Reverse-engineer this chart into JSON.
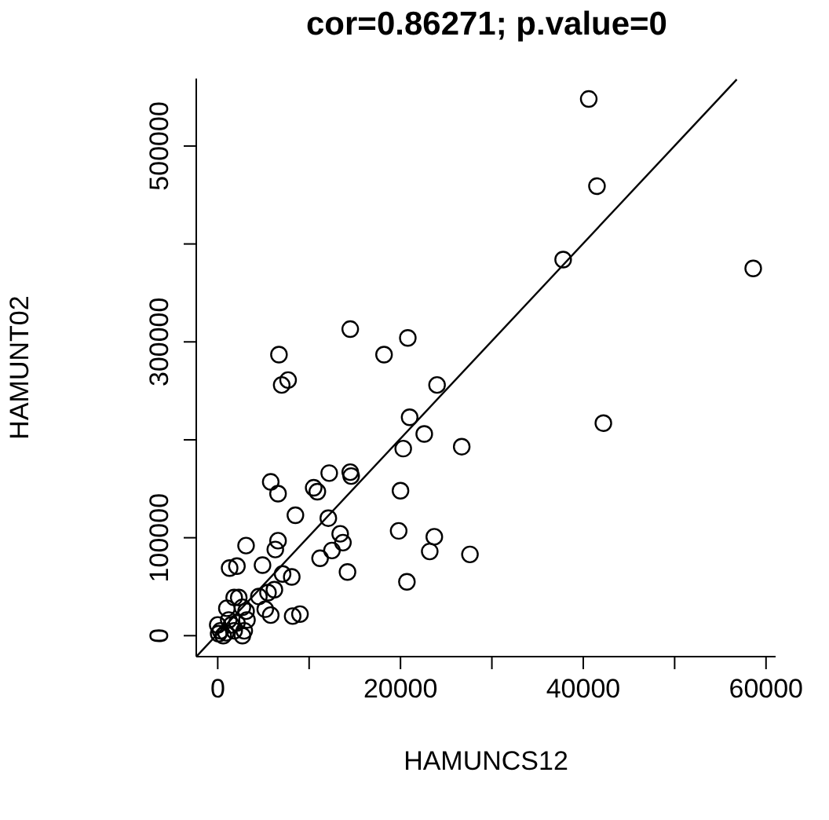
{
  "chart_data": {
    "type": "scatter",
    "title": "cor=0.86271;   p.value=0",
    "xlabel": "HAMUNCS12",
    "ylabel": "HAMUNT02",
    "xlim": [
      -2350,
      61050
    ],
    "ylim": [
      -21400,
      568900
    ],
    "xticks": [
      0,
      {
        "value": 10000,
        "label": null
      },
      20000,
      {
        "value": 30000,
        "label": null
      },
      40000,
      {
        "value": 50000,
        "label": null
      },
      60000
    ],
    "yticks": [
      0,
      100000,
      {
        "value": 200000,
        "label": null
      },
      300000,
      {
        "value": 400000,
        "label": null
      },
      500000
    ],
    "series": [
      {
        "color": "#000000",
        "marker": "circle",
        "x": [
          40600,
          41500,
          37800,
          58600,
          14500,
          20800,
          6700,
          18200,
          7000,
          7700,
          24000,
          21000,
          42200,
          22600,
          26700,
          20300,
          5800,
          6600,
          10500,
          10900,
          12200,
          14500,
          14600,
          20000,
          8500,
          12100,
          13400,
          13700,
          12500,
          11200,
          19800,
          23700,
          23200,
          27600,
          14200,
          20700,
          3100,
          6600,
          6300,
          4900,
          1300,
          2100,
          7100,
          8100,
          6200,
          5500,
          4500,
          2300,
          1800,
          2700,
          3100,
          1000,
          5200,
          5800,
          8200,
          9000,
          300,
          900,
          0,
          1500,
          2700,
          2900,
          600,
          100,
          1800,
          1200,
          2100,
          3200
        ],
        "values": [
          548000,
          459000,
          384000,
          375000,
          313000,
          304000,
          287000,
          287000,
          256000,
          261000,
          256000,
          223000,
          217000,
          206000,
          193000,
          191000,
          157000,
          145000,
          151000,
          147000,
          166000,
          167000,
          163000,
          148000,
          123000,
          120000,
          104000,
          95000,
          87000,
          79000,
          107000,
          101000,
          86000,
          83000,
          65000,
          55000,
          92000,
          97000,
          88000,
          72000,
          69000,
          71000,
          63000,
          60000,
          47000,
          44000,
          40000,
          39000,
          39000,
          29000,
          25000,
          28000,
          27000,
          21000,
          20000,
          22000,
          5000,
          3000,
          11000,
          11000,
          0,
          5000,
          0,
          2000,
          5000,
          16000,
          13000,
          16000
        ]
      },
      {
        "type": "line",
        "color": "#000000",
        "line_style": "solid",
        "x": [
          -2300,
          56800
        ],
        "values": [
          -21000,
          568000
        ]
      }
    ]
  }
}
